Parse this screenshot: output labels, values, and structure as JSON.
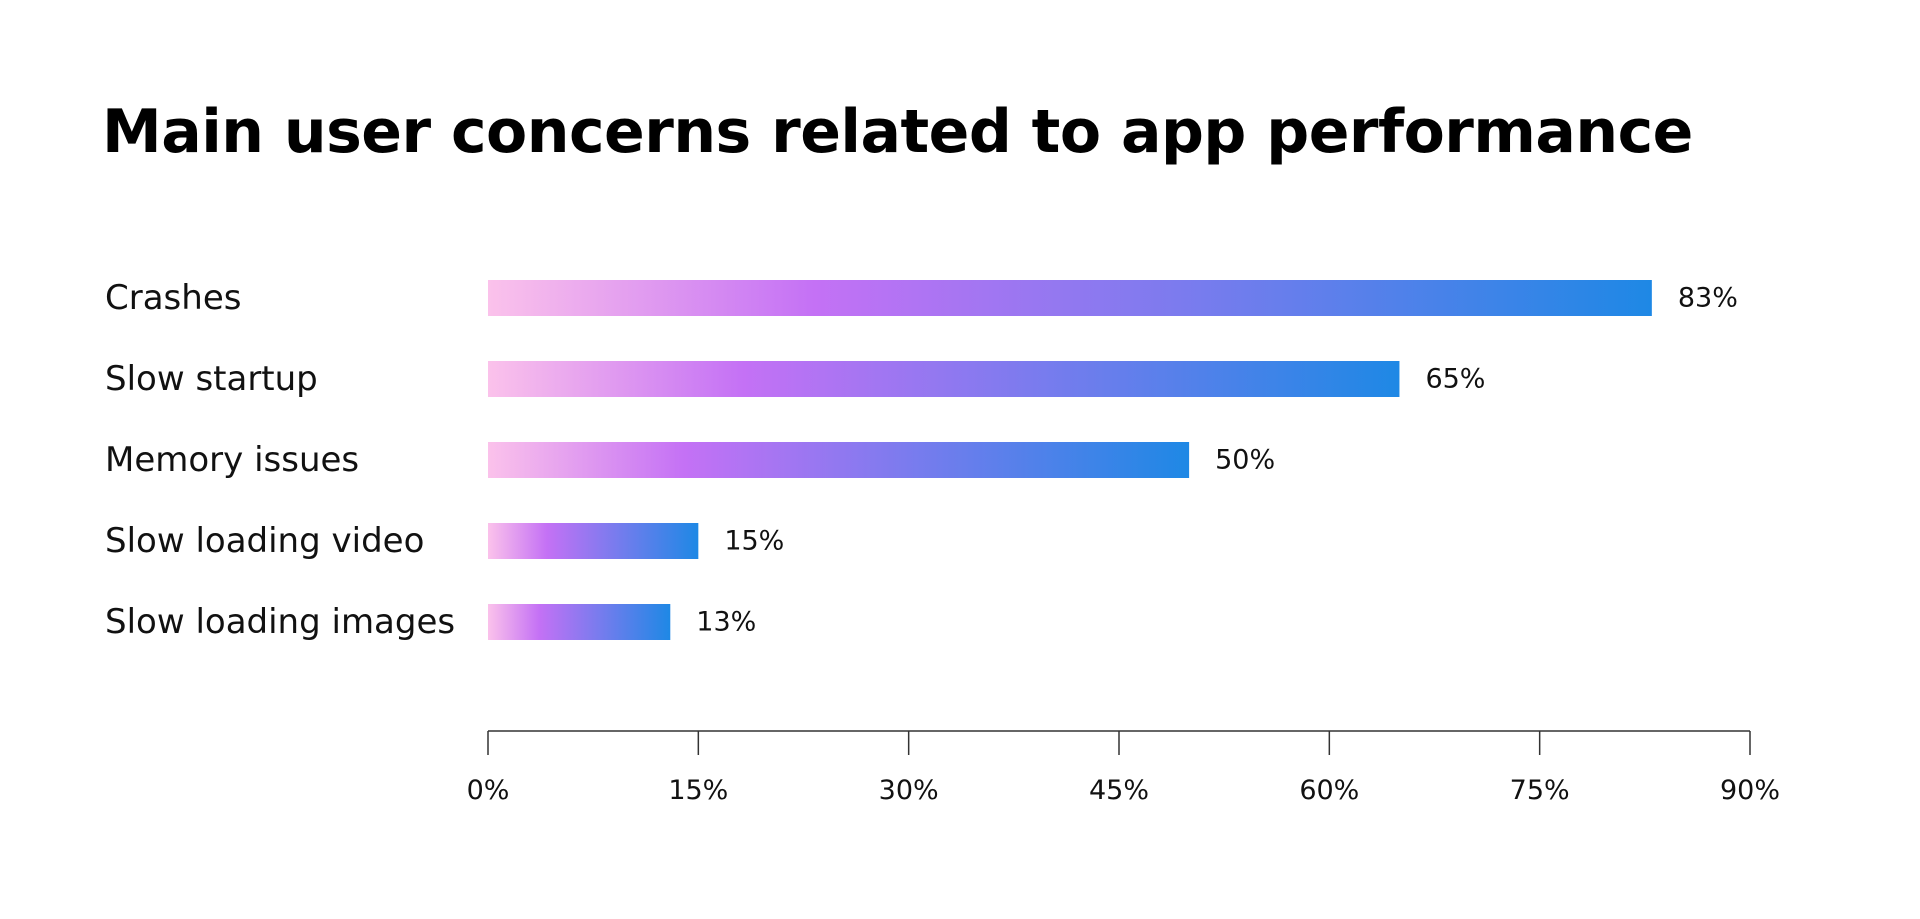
{
  "chart_data": {
    "type": "bar",
    "orientation": "horizontal",
    "title": "Main user concerns related to app performance",
    "categories": [
      "Crashes",
      "Slow startup",
      "Memory issues",
      "Slow loading video",
      "Slow loading images"
    ],
    "values": [
      83,
      65,
      50,
      15,
      13
    ],
    "value_labels": [
      "83%",
      "65%",
      "50%",
      "15%",
      "13%"
    ],
    "xlim": [
      0,
      90
    ],
    "x_ticks": [
      0,
      15,
      30,
      45,
      60,
      75,
      90
    ],
    "x_tick_labels": [
      "0%",
      "15%",
      "30%",
      "45%",
      "60%",
      "75%",
      "90%"
    ],
    "xlabel": "",
    "ylabel": "",
    "grid": false,
    "bar_gradient": [
      "#fbc2eb",
      "#c471f5",
      "#1e88e5"
    ]
  }
}
